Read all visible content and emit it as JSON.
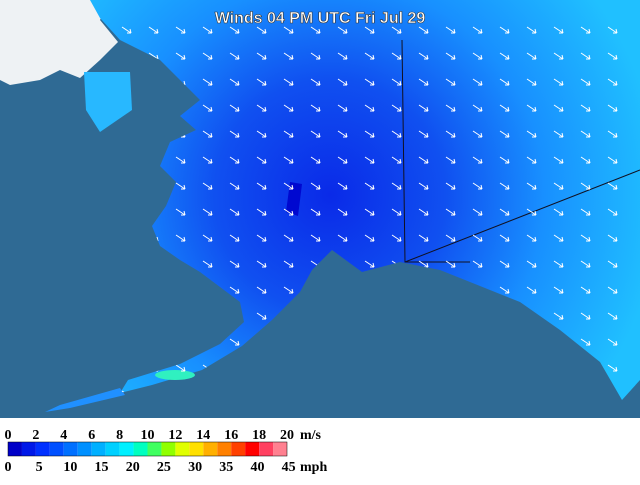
{
  "title": "Winds 04 PM UTC Fri Jul 29",
  "legend": {
    "ms_ticks": [
      0,
      2,
      4,
      6,
      8,
      10,
      12,
      14,
      16,
      18,
      20
    ],
    "ms_unit": "m/s",
    "mph_ticks": [
      0,
      5,
      10,
      15,
      20,
      25,
      30,
      35,
      40,
      45
    ],
    "mph_unit": "mph",
    "colors": [
      "#0000c8",
      "#0018e8",
      "#0030ff",
      "#0050ff",
      "#0070ff",
      "#0090ff",
      "#00b0ff",
      "#00d0ff",
      "#00f0ff",
      "#00ffc0",
      "#40ff60",
      "#90ff00",
      "#e0ff00",
      "#ffe000",
      "#ffb000",
      "#ff8000",
      "#ff4000",
      "#ff0000",
      "#ff4060",
      "#ff8090"
    ]
  }
}
